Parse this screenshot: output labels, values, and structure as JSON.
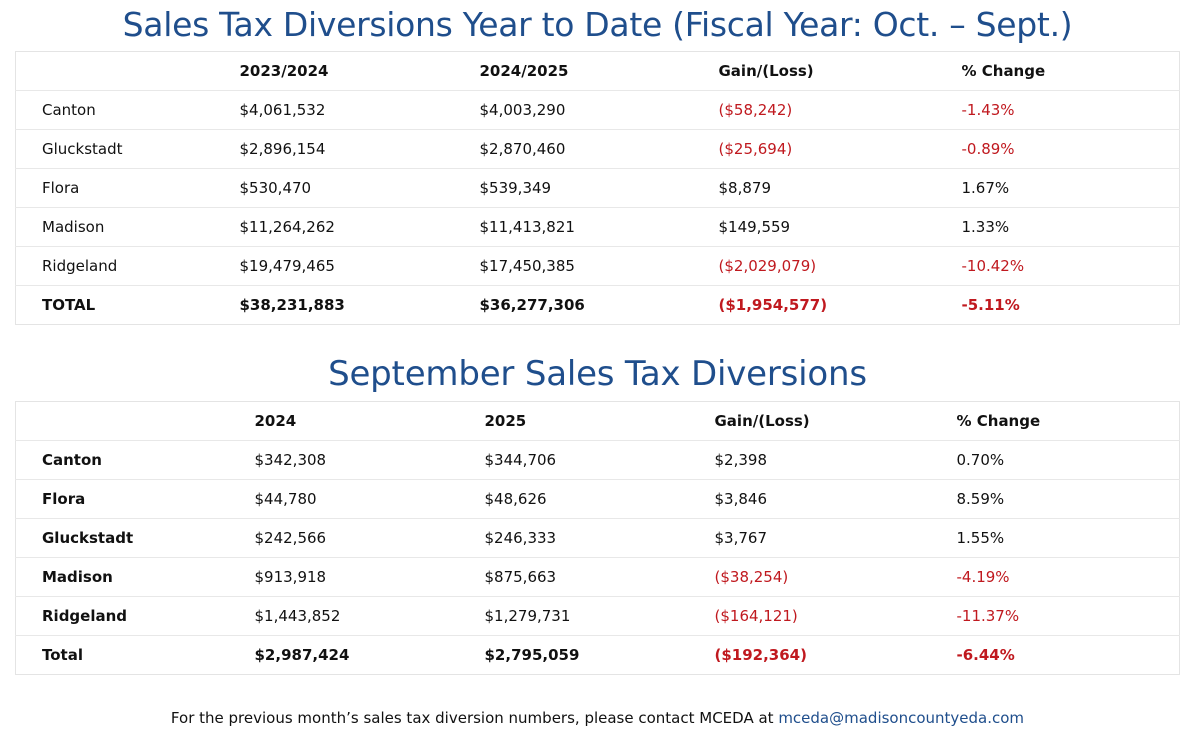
{
  "ytd": {
    "title": "Sales Tax Diversions Year to Date (Fiscal Year: Oct. – Sept.)",
    "headers": [
      "",
      "2023/2024",
      "2024/2025",
      "Gain/(Loss)",
      "% Change"
    ],
    "rows": [
      {
        "name": "Canton",
        "prev": "$4,061,532",
        "curr": "$4,003,290",
        "gain": "($58,242)",
        "pct": "-1.43%",
        "negative": true
      },
      {
        "name": "Gluckstadt",
        "prev": "$2,896,154",
        "curr": "$2,870,460",
        "gain": "($25,694)",
        "pct": "-0.89%",
        "negative": true
      },
      {
        "name": "Flora",
        "prev": "$530,470",
        "curr": "$539,349",
        "gain": "$8,879",
        "pct": "1.67%",
        "negative": false
      },
      {
        "name": "Madison",
        "prev": "$11,264,262",
        "curr": "$11,413,821",
        "gain": "$149,559",
        "pct": "1.33%",
        "negative": false
      },
      {
        "name": "Ridgeland",
        "prev": "$19,479,465",
        "curr": "$17,450,385",
        "gain": "($2,029,079)",
        "pct": "-10.42%",
        "negative": true
      }
    ],
    "total": {
      "name": "TOTAL",
      "prev": "$38,231,883",
      "curr": "$36,277,306",
      "gain": "($1,954,577)",
      "pct": "-5.11%",
      "negative": true
    }
  },
  "september": {
    "title": "September Sales Tax Diversions",
    "headers": [
      "",
      "2024",
      "2025",
      "Gain/(Loss)",
      "% Change"
    ],
    "rows": [
      {
        "name": "Canton",
        "prev": "$342,308",
        "curr": "$344,706",
        "gain": "$2,398",
        "pct": "0.70%",
        "negative": false
      },
      {
        "name": "Flora",
        "prev": "$44,780",
        "curr": "$48,626",
        "gain": "$3,846",
        "pct": "8.59%",
        "negative": false
      },
      {
        "name": "Gluckstadt",
        "prev": "$242,566",
        "curr": "$246,333",
        "gain": "$3,767",
        "pct": "1.55%",
        "negative": false
      },
      {
        "name": "Madison",
        "prev": "$913,918",
        "curr": "$875,663",
        "gain": "($38,254)",
        "pct": "-4.19%",
        "negative": true
      },
      {
        "name": "Ridgeland",
        "prev": "$1,443,852",
        "curr": "$1,279,731",
        "gain": "($164,121)",
        "pct": "-11.37%",
        "negative": true
      }
    ],
    "total": {
      "name": "Total",
      "prev": "$2,987,424",
      "curr": "$2,795,059",
      "gain": "($192,364)",
      "pct": "-6.44%",
      "negative": true
    }
  },
  "footer": {
    "text": "For the previous month’s sales tax diversion numbers, please contact MCEDA at ",
    "email": "mceda@madisoncountyeda.com"
  },
  "colors": {
    "title": "#1f4e8c",
    "negative": "#c0191f",
    "link": "#1f4e8c"
  }
}
